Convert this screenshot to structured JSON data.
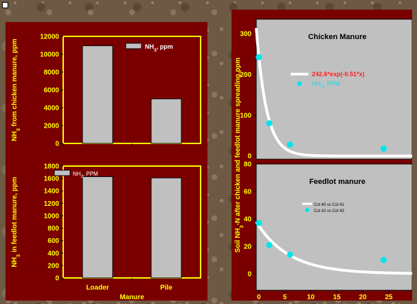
{
  "chart_data": [
    {
      "type": "bar",
      "categories": [
        "Loader",
        "Pile"
      ],
      "values": [
        10950,
        5000
      ],
      "ylim": [
        0,
        12000
      ],
      "yticks": [
        0,
        2000,
        4000,
        6000,
        8000,
        10000,
        12000
      ],
      "ylabel": "NH₃ from chicken manure, ppm",
      "legend": "NH₃, ppm",
      "bar_color": "#c0c0c0",
      "plot_color": "#7a0000",
      "frame_color": "#ffff00"
    },
    {
      "type": "bar",
      "categories": [
        "Loader",
        "Pile"
      ],
      "values": [
        1630,
        1610
      ],
      "ylim": [
        0,
        1800
      ],
      "yticks": [
        0,
        200,
        400,
        600,
        800,
        1000,
        1200,
        1400,
        1600,
        1800
      ],
      "ylabel": "NH₃ in feedlot manure, ppm",
      "xlabel": "Manure",
      "legend": "NH₃, PPM",
      "bar_color": "#c0c0c0",
      "plot_color": "#7a0000",
      "frame_color": "#ffff00"
    },
    {
      "type": "scatter",
      "title": "Chicken Manure",
      "x": [
        0,
        2,
        6,
        24
      ],
      "y": [
        242,
        80,
        28,
        18
      ],
      "fit": {
        "a": 242.6,
        "b": -0.51,
        "label": "242.6*exp(-0.51*x)"
      },
      "series_label": "NH₃, PPM",
      "xlim": [
        -0.5,
        29.5
      ],
      "ylim": [
        -8,
        335
      ],
      "yticks": [
        0,
        100,
        200,
        300
      ],
      "plot_color": "#c0c0c0",
      "point_color": "#00e5ee",
      "line_color": "#ffffff",
      "fit_label_color": "#ff2020"
    },
    {
      "type": "scatter",
      "title": "Feedlot manure",
      "x": [
        0,
        2,
        6,
        24
      ],
      "y": [
        37,
        21,
        14,
        10
      ],
      "fit": {
        "a": 35,
        "b": -0.16
      },
      "legend": [
        "Col 40 vs Col 41",
        "Col 42 vs Col 43"
      ],
      "xlim": [
        -0.5,
        29.5
      ],
      "ylim": [
        -12,
        80
      ],
      "yticks": [
        0,
        20,
        40,
        60,
        80
      ],
      "xticks": [
        0,
        5,
        10,
        15,
        20,
        25
      ],
      "plot_color": "#c0c0c0",
      "point_color": "#00e5ee",
      "line_color": "#ffffff"
    }
  ],
  "shared_ylabel_right": "Soil NH₃-N after chicken and feedlot manure spreading,ppm"
}
